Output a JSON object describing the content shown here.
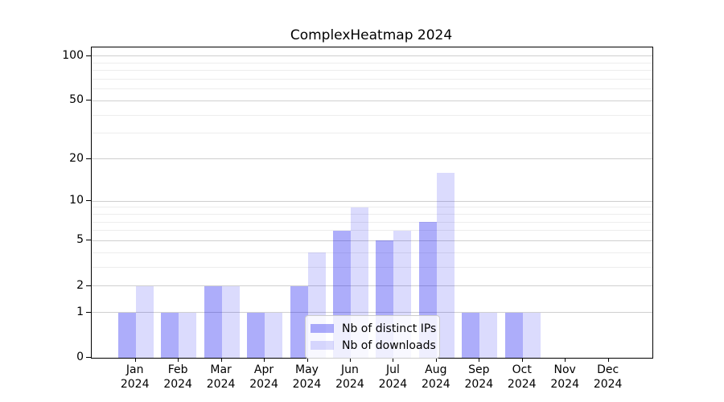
{
  "chart_data": {
    "type": "bar",
    "title": "ComplexHeatmap 2024",
    "categories": [
      "Jan 2024",
      "Feb 2024",
      "Mar 2024",
      "Apr 2024",
      "May 2024",
      "Jun 2024",
      "Jul 2024",
      "Aug 2024",
      "Sep 2024",
      "Oct 2024",
      "Nov 2024",
      "Dec 2024"
    ],
    "series": [
      {
        "name": "Nb of distinct IPs",
        "color": "rgba(16,16,240,0.34)",
        "values": [
          1,
          1,
          2,
          1,
          2,
          6,
          5,
          7,
          1,
          1,
          0,
          0
        ]
      },
      {
        "name": "Nb of downloads",
        "color": "rgba(16,16,240,0.15)",
        "values": [
          2,
          1,
          2,
          1,
          4,
          9,
          6,
          16,
          1,
          1,
          0,
          0
        ]
      }
    ],
    "xlabel": "",
    "ylabel": "",
    "yscale": "log1p",
    "ylim": [
      0,
      115
    ],
    "yticks": [
      0,
      1,
      2,
      5,
      10,
      20,
      50,
      100
    ],
    "minor_yticks": [
      3,
      4,
      6,
      7,
      8,
      9,
      30,
      40,
      60,
      70,
      80,
      90
    ],
    "grid": true,
    "legend_position": "lower center"
  },
  "colors": {
    "grid_major": "#cfcfcf",
    "grid_minor": "#ededed",
    "spine": "#000000",
    "legend_border": "#cccccc",
    "legend_bg": "rgba(255,255,255,0.8)"
  }
}
